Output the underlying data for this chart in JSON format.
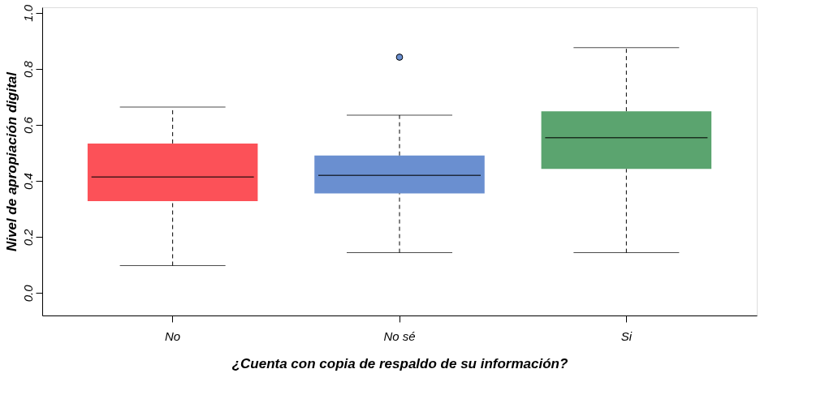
{
  "chart_data": {
    "type": "box",
    "xlabel": "¿Cuenta con copia de respaldo de su información?",
    "ylabel": "Nivel de apropiación digital",
    "categories": [
      "No",
      "No sé",
      "Si"
    ],
    "colors": [
      "#fc5158",
      "#6a8fd0",
      "#5ba46f"
    ],
    "boxes": [
      {
        "low": 0.098,
        "q1": 0.328,
        "median": 0.414,
        "q3": 0.534,
        "high": 0.664
      },
      {
        "low": 0.144,
        "q1": 0.356,
        "median": 0.42,
        "q3": 0.491,
        "high": 0.635,
        "outliers": [
          0.842
        ]
      },
      {
        "low": 0.144,
        "q1": 0.443,
        "median": 0.555,
        "q3": 0.649,
        "high": 0.876
      }
    ],
    "ylim": [
      -0.08,
      1.02
    ],
    "yticks": [
      {
        "value": 0,
        "label": "0.0"
      },
      0.2,
      0.4,
      0.6,
      0.8,
      {
        "value": 1,
        "label": "1.0"
      }
    ],
    "grid": false,
    "legend": false,
    "marker": "circle"
  }
}
